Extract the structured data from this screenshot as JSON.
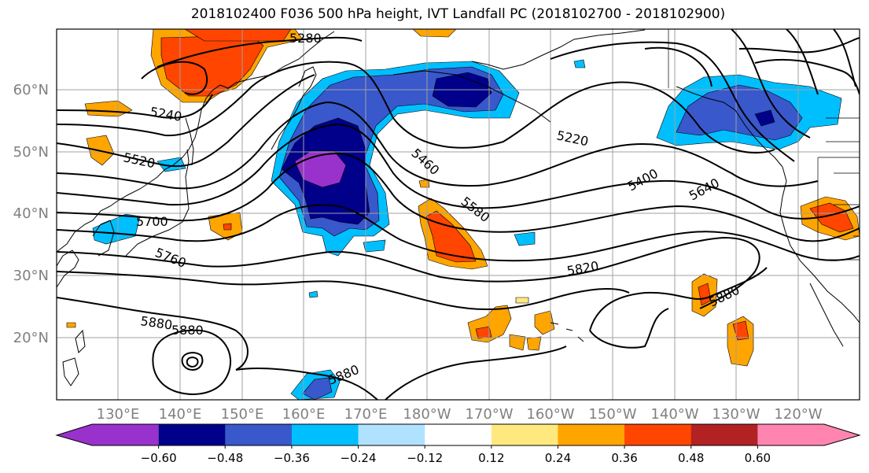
{
  "title": "2018102400 F036 500 hPa height, IVT Landfall PC (2018102700 - 2018102900)",
  "map": {
    "lat_labels": [
      "60°N",
      "50°N",
      "40°N",
      "30°N",
      "20°N"
    ],
    "lon_labels": [
      "130°E",
      "140°E",
      "150°E",
      "160°E",
      "170°E",
      "180°W",
      "170°W",
      "160°W",
      "150°W",
      "140°W",
      "130°W",
      "120°W"
    ],
    "contour_labels": [
      {
        "text": "5280"
      },
      {
        "text": "5240"
      },
      {
        "text": "5520"
      },
      {
        "text": "5700"
      },
      {
        "text": "5760"
      },
      {
        "text": "5880"
      },
      {
        "text": "5880"
      },
      {
        "text": "5880"
      },
      {
        "text": "5460"
      },
      {
        "text": "5580"
      },
      {
        "text": "5220"
      },
      {
        "text": "5400"
      },
      {
        "text": "5640"
      },
      {
        "text": "5820"
      },
      {
        "text": "5880"
      }
    ]
  },
  "colorbar": {
    "colors": [
      "#9932cc",
      "#00008b",
      "#3858cc",
      "#00bfff",
      "#b0e2ff",
      "#ffffff",
      "#ffe97f",
      "#ffa500",
      "#ff4500",
      "#b22222",
      "#ff85b0"
    ],
    "tick_labels": [
      "−0.60",
      "−0.48",
      "−0.36",
      "−0.24",
      "−0.12",
      "0.12",
      "0.24",
      "0.36",
      "0.48",
      "0.60"
    ]
  },
  "colors": {
    "coast": "#000000",
    "contour": "#000000",
    "grid": "#a0a0a0",
    "axis_label": "#808080"
  }
}
